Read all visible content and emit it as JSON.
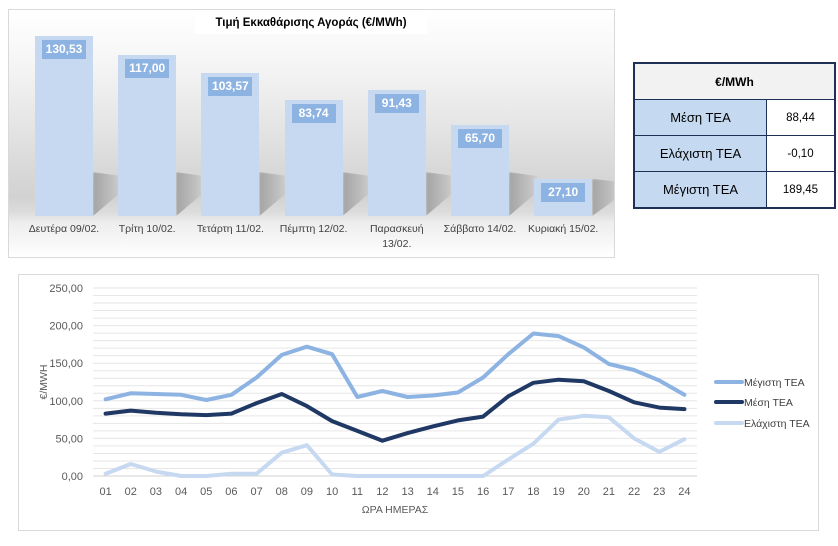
{
  "chart_data": [
    {
      "type": "bar",
      "title": "Τιμή Εκκαθάρισης Αγοράς (€/MWh)",
      "xlabel": "",
      "ylabel": "",
      "categories": [
        "Δευτέρα 09/02.",
        "Τρίτη 10/02.",
        "Τετάρτη 11/02.",
        "Πέμπτη 12/02.",
        "Παρασκευή 13/02.",
        "Σάββατο 14/02.",
        "Κυριακή 15/02."
      ],
      "values": [
        130.53,
        117.0,
        103.57,
        83.74,
        91.43,
        65.7,
        27.1
      ],
      "value_labels": [
        "130,53",
        "117,00",
        "103,57",
        "83,74",
        "91,43",
        "65,70",
        "27,10"
      ],
      "bar_color": "#c6d9f1",
      "label_box_color": "#8db3e2",
      "grid": false,
      "legend": "none"
    },
    {
      "type": "line",
      "title": "",
      "xlabel": "ΩΡΑ ΗΜΕΡΑΣ",
      "ylabel": "€/MWH",
      "x": [
        "01",
        "02",
        "03",
        "04",
        "05",
        "06",
        "07",
        "08",
        "09",
        "10",
        "11",
        "12",
        "13",
        "14",
        "15",
        "16",
        "17",
        "18",
        "19",
        "20",
        "21",
        "22",
        "23",
        "24"
      ],
      "ylim": [
        0,
        250
      ],
      "y_ticks": [
        0,
        50,
        100,
        150,
        200,
        250
      ],
      "y_tick_labels": [
        "0,00",
        "50,00",
        "100,00",
        "150,00",
        "200,00",
        "250,00"
      ],
      "grid": true,
      "legend": "right",
      "series": [
        {
          "name": "Μέγιστη ΤΕΑ",
          "color": "#8db3e2",
          "values": [
            102,
            110,
            109,
            108,
            101,
            108,
            131,
            161,
            172,
            162,
            105,
            113,
            105,
            107,
            111,
            131,
            162,
            189.45,
            186,
            171,
            149,
            141,
            127,
            108
          ]
        },
        {
          "name": "Μέση ΤΕΑ",
          "color": "#1f3864",
          "values": [
            83,
            87,
            84,
            82,
            81,
            83,
            97,
            109,
            93,
            73,
            60,
            47,
            57,
            66,
            74,
            79,
            106,
            124,
            128,
            126,
            113,
            98,
            91,
            89
          ]
        },
        {
          "name": "Ελάχιστη ΤΕΑ",
          "color": "#c6d9f1",
          "values": [
            3,
            16,
            6,
            0,
            0,
            3,
            3,
            31,
            41,
            2,
            0,
            0,
            0,
            0,
            0,
            0,
            22,
            43,
            75,
            80,
            78,
            50,
            32,
            49
          ]
        }
      ]
    }
  ],
  "summary_table": {
    "header": "€/MWh",
    "rows": [
      {
        "label": "Μέση ΤΕΑ",
        "value": "88,44"
      },
      {
        "label": "Ελάχιστη ΤΕΑ",
        "value": "-0,10"
      },
      {
        "label": "Μέγιστη ΤΕΑ",
        "value": "189,45"
      }
    ],
    "border_color": "#1f3057",
    "label_bg": "#c5d9f1"
  }
}
